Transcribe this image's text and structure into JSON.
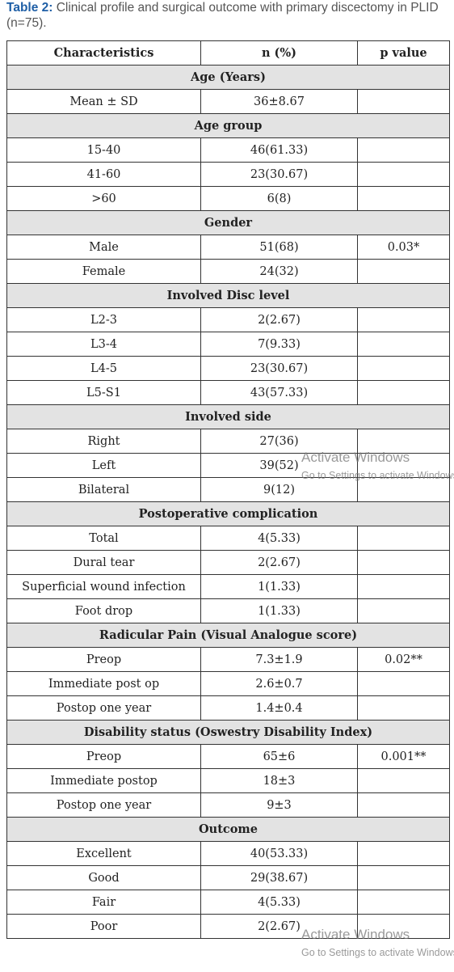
{
  "caption": {
    "label": "Table 2:",
    "text": " Clinical profile and surgical outcome with primary discectomy in PLID (n=75)."
  },
  "headers": [
    "Characteristics",
    "n (%)",
    "p value"
  ],
  "sections": [
    {
      "title": "Age (Years)",
      "rows": [
        [
          "Mean ± SD",
          "36±8.67",
          ""
        ]
      ]
    },
    {
      "title": "Age group",
      "rows": [
        [
          "15-40",
          "46(61.33)",
          ""
        ],
        [
          "41-60",
          "23(30.67)",
          ""
        ],
        [
          ">60",
          "6(8)",
          ""
        ]
      ]
    },
    {
      "title": "Gender",
      "rows": [
        [
          "Male",
          "51(68)",
          "0.03*"
        ],
        [
          "Female",
          "24(32)",
          ""
        ]
      ]
    },
    {
      "title": "Involved Disc level",
      "rows": [
        [
          "L2-3",
          "2(2.67)",
          ""
        ],
        [
          "L3-4",
          "7(9.33)",
          ""
        ],
        [
          "L4-5",
          "23(30.67)",
          ""
        ],
        [
          "L5-S1",
          "43(57.33)",
          ""
        ]
      ]
    },
    {
      "title": "Involved side",
      "rows": [
        [
          "Right",
          "27(36)",
          ""
        ],
        [
          "Left",
          "39(52)",
          ""
        ],
        [
          "Bilateral",
          "9(12)",
          ""
        ]
      ]
    },
    {
      "title": "Postoperative complication",
      "rows": [
        [
          "Total",
          "4(5.33)",
          ""
        ],
        [
          "Dural tear",
          "2(2.67)",
          ""
        ],
        [
          "Superficial wound infection",
          "1(1.33)",
          ""
        ],
        [
          "Foot drop",
          "1(1.33)",
          ""
        ]
      ]
    },
    {
      "title": "Radicular Pain (Visual Analogue score)",
      "rows": [
        [
          "Preop",
          "7.3±1.9",
          "0.02**"
        ],
        [
          "Immediate post op",
          "2.6±0.7",
          ""
        ],
        [
          "Postop one year",
          "1.4±0.4",
          ""
        ]
      ]
    },
    {
      "title": "Disability status (Oswestry Disability Index)",
      "rows": [
        [
          "Preop",
          "65±6",
          "0.001**"
        ],
        [
          "Immediate postop",
          "18±3",
          ""
        ],
        [
          "Postop one year",
          "9±3",
          ""
        ]
      ]
    },
    {
      "title": "Outcome",
      "rows": [
        [
          "Excellent",
          "40(53.33)",
          ""
        ],
        [
          "Good",
          "29(38.67)",
          ""
        ],
        [
          "Fair",
          "4(5.33)",
          ""
        ],
        [
          "Poor",
          "2(2.67)",
          ""
        ]
      ]
    }
  ],
  "watermark": {
    "title": "Activate Windows",
    "subtitle": "Go to Settings to activate Windows."
  }
}
